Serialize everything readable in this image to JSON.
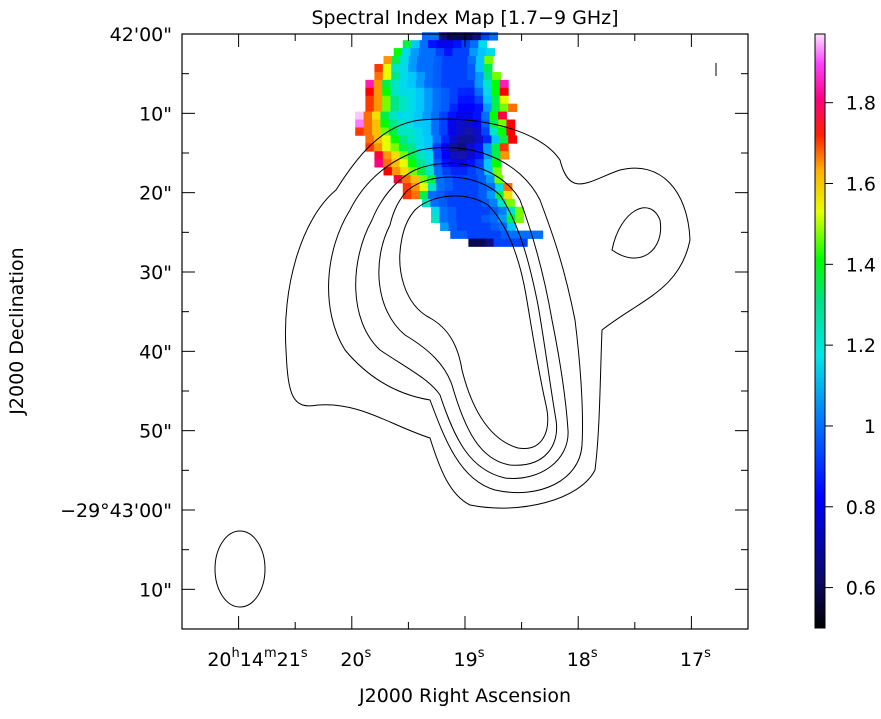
{
  "chart_data": {
    "type": "heatmap",
    "title": "Spectral Index Map [1.7−9 GHz]",
    "xlabel": "J2000 Right Ascension",
    "ylabel": "J2000 Declination",
    "x_ticks": [
      {
        "h": "20",
        "m": "14",
        "s": "21",
        "ra_s": 21,
        "style": "full"
      },
      {
        "s": "20",
        "ra_s": 20,
        "style": "sec"
      },
      {
        "s": "19",
        "ra_s": 19,
        "style": "sec"
      },
      {
        "s": "18",
        "ra_s": 18,
        "style": "sec"
      },
      {
        "s": "17",
        "ra_s": 17,
        "style": "sec"
      }
    ],
    "y_ticks": [
      {
        "label": "42'00\"",
        "dec_arcsec": 0
      },
      {
        "label": "10\"",
        "dec_arcsec": -10
      },
      {
        "label": "20\"",
        "dec_arcsec": -20
      },
      {
        "label": "30\"",
        "dec_arcsec": -30
      },
      {
        "label": "40\"",
        "dec_arcsec": -40
      },
      {
        "label": "50\"",
        "dec_arcsec": -50
      },
      {
        "label": "−29°43'00\"",
        "dec_arcsec": -60
      },
      {
        "label": "10\"",
        "dec_arcsec": -70
      }
    ],
    "xlim_ra_seconds": [
      21.5,
      16.5
    ],
    "ylim_dec_arcsec_below_42m": [
      -75,
      0
    ],
    "colorbar": {
      "vmin": 0.5,
      "vmax": 1.97,
      "ticks": [
        0.6,
        0.8,
        1.0,
        1.2,
        1.4,
        1.6,
        1.8
      ],
      "tick_labels": [
        "0.6",
        "0.8",
        "1",
        "1.2",
        "1.4",
        "1.6",
        "1.8"
      ],
      "colormap": "rainbow (black-blue-cyan-green-yellow-red-magenta-white)"
    },
    "spectral_index_rows": [
      {
        "dec": -0.6,
        "start_ra": 19.38,
        "values": [
          0.9,
          0.9,
          0.6,
          0.55,
          0.55,
          0.55,
          0.6,
          0.85,
          0.9
        ]
      },
      {
        "dec": -1.6,
        "start_ra": 19.55,
        "values": [
          1.2,
          1.0,
          0.9,
          0.8,
          0.75,
          0.75,
          0.8,
          0.85,
          0.9,
          1.05
        ]
      },
      {
        "dec": -2.6,
        "start_ra": 19.63,
        "values": [
          1.25,
          1.05,
          0.95,
          0.9,
          0.9,
          0.85,
          0.8,
          0.85,
          0.85,
          0.95,
          1.0,
          1.05
        ]
      },
      {
        "dec": -3.6,
        "start_ra": 19.72,
        "values": [
          1.5,
          1.2,
          1.05,
          0.95,
          0.9,
          0.9,
          0.88,
          0.85,
          0.85,
          0.85,
          0.9,
          1.0,
          1.3
        ]
      },
      {
        "dec": -4.6,
        "start_ra": 19.8,
        "values": [
          1.6,
          1.35,
          1.1,
          1.05,
          0.95,
          0.9,
          0.9,
          0.88,
          0.85,
          0.85,
          0.85,
          0.88,
          1.0,
          1.2
        ]
      },
      {
        "dec": -5.6,
        "start_ra": 19.8,
        "values": [
          1.55,
          1.35,
          1.15,
          1.05,
          1.0,
          0.95,
          0.9,
          0.88,
          0.85,
          0.85,
          0.85,
          0.88,
          0.95,
          1.15,
          1.3
        ]
      },
      {
        "dec": -6.6,
        "start_ra": 19.88,
        "values": [
          1.8,
          1.5,
          1.2,
          1.1,
          1.05,
          1.0,
          0.95,
          0.9,
          0.88,
          0.85,
          0.85,
          0.85,
          0.85,
          0.95,
          1.1,
          1.25,
          1.8
        ]
      },
      {
        "dec": -7.6,
        "start_ra": 19.88,
        "values": [
          1.65,
          1.5,
          1.25,
          1.1,
          1.05,
          1.05,
          1.0,
          0.95,
          0.9,
          0.88,
          0.85,
          0.82,
          0.82,
          0.9,
          1.05,
          1.25,
          1.65
        ]
      },
      {
        "dec": -8.6,
        "start_ra": 19.88,
        "values": [
          1.6,
          1.5,
          1.3,
          1.15,
          1.1,
          1.05,
          1.0,
          0.95,
          0.9,
          0.88,
          0.85,
          0.8,
          0.8,
          0.85,
          1.0,
          1.2,
          1.35
        ]
      },
      {
        "dec": -9.6,
        "start_ra": 19.88,
        "values": [
          1.6,
          1.5,
          1.3,
          1.15,
          1.1,
          1.05,
          1.0,
          0.95,
          0.9,
          0.88,
          0.82,
          0.78,
          0.78,
          0.8,
          0.95,
          1.2,
          1.3,
          1.55
        ]
      },
      {
        "dec": -10.6,
        "start_ra": 19.97,
        "values": [
          1.95,
          1.55,
          1.4,
          1.2,
          1.1,
          1.05,
          1.05,
          1.0,
          0.95,
          0.9,
          0.85,
          0.8,
          0.75,
          0.75,
          0.8,
          0.9,
          1.25,
          1.7
        ]
      },
      {
        "dec": -11.6,
        "start_ra": 19.97,
        "values": [
          1.9,
          1.55,
          1.45,
          1.25,
          1.15,
          1.1,
          1.05,
          1.0,
          1.0,
          0.9,
          0.85,
          0.75,
          0.7,
          0.7,
          0.75,
          0.88,
          1.2,
          1.3,
          1.65
        ]
      },
      {
        "dec": -12.6,
        "start_ra": 19.97,
        "values": [
          1.6,
          1.55,
          1.45,
          1.3,
          1.2,
          1.1,
          1.1,
          1.05,
          1.0,
          0.9,
          0.85,
          0.75,
          0.7,
          0.65,
          0.7,
          0.85,
          1.1,
          1.25,
          1.65
        ]
      },
      {
        "dec": -13.6,
        "start_ra": 19.88,
        "values": [
          1.55,
          1.45,
          1.35,
          1.25,
          1.15,
          1.1,
          1.05,
          1.0,
          0.9,
          0.82,
          0.7,
          0.62,
          0.62,
          0.7,
          0.82,
          1.0,
          1.2,
          1.65
        ]
      },
      {
        "dec": -14.6,
        "start_ra": 19.88,
        "values": [
          1.6,
          1.5,
          1.35,
          1.3,
          1.2,
          1.15,
          1.05,
          1.0,
          0.85,
          0.75,
          0.62,
          0.6,
          0.7,
          0.8,
          0.95,
          1.2,
          1.6
        ]
      },
      {
        "dec": -15.6,
        "start_ra": 19.8,
        "values": [
          1.7,
          1.5,
          1.4,
          1.3,
          1.2,
          1.1,
          1.05,
          0.85,
          0.78,
          0.68,
          0.65,
          0.72,
          0.8,
          0.95,
          1.2,
          1.5
        ]
      },
      {
        "dec": -16.6,
        "start_ra": 19.8,
        "values": [
          1.75,
          1.55,
          1.45,
          1.35,
          1.25,
          1.15,
          1.05,
          0.88,
          0.8,
          0.75,
          0.75,
          0.8,
          0.85,
          1.0,
          1.25
        ]
      },
      {
        "dec": -17.6,
        "start_ra": 19.72,
        "values": [
          1.65,
          1.5,
          1.4,
          1.3,
          1.2,
          1.1,
          0.9,
          0.85,
          0.82,
          0.82,
          0.85,
          0.88,
          1.0,
          1.3
        ]
      },
      {
        "dec": -18.6,
        "start_ra": 19.63,
        "values": [
          1.7,
          1.55,
          1.45,
          1.3,
          1.2,
          0.9,
          0.88,
          0.85,
          0.85,
          0.85,
          0.88,
          0.95,
          1.3
        ]
      },
      {
        "dec": -19.6,
        "start_ra": 19.55,
        "values": [
          1.6,
          1.5,
          1.35,
          1.1,
          0.9,
          0.88,
          0.85,
          0.85,
          0.85,
          0.88,
          0.9,
          1.05,
          1.55
        ]
      },
      {
        "dec": -20.6,
        "start_ra": 19.55,
        "values": [
          1.6,
          1.55,
          1.2,
          0.9,
          0.88,
          0.85,
          0.85,
          0.85,
          0.85,
          0.88,
          0.95,
          1.2,
          1.4
        ]
      },
      {
        "dec": -21.6,
        "start_ra": 19.38,
        "values": [
          1.1,
          0.9,
          0.88,
          0.85,
          0.85,
          0.85,
          0.85,
          0.88,
          0.92,
          1.1,
          1.3
        ]
      },
      {
        "dec": -22.6,
        "start_ra": 19.3,
        "values": [
          1.05,
          0.9,
          0.88,
          0.85,
          0.85,
          0.85,
          0.85,
          0.88,
          0.92,
          1.1,
          1.3
        ]
      },
      {
        "dec": -23.6,
        "start_ra": 19.3,
        "values": [
          1.1,
          0.9,
          0.88,
          0.85,
          0.85,
          0.85,
          0.88,
          0.9,
          0.95,
          1.2,
          1.3
        ]
      },
      {
        "dec": -24.6,
        "start_ra": 19.22,
        "values": [
          0.95,
          0.88,
          0.85,
          0.85,
          0.85,
          0.85,
          0.88,
          0.9,
          1.0
        ]
      },
      {
        "dec": -25.6,
        "start_ra": 19.13,
        "values": [
          0.88,
          0.88,
          0.85,
          0.85,
          0.85,
          0.85,
          0.88,
          0.9,
          0.9,
          0.9,
          0.9
        ]
      },
      {
        "dec": -26.6,
        "start_ra": 18.97,
        "values": [
          0.55,
          0.55,
          0.6,
          0.85,
          0.85,
          0.85,
          0.85
        ]
      }
    ],
    "contour_overlay": "black total-intensity contours",
    "beam_ellipse_drawn": true
  },
  "colors": {
    "frame": "#000000",
    "background": "#ffffff"
  }
}
